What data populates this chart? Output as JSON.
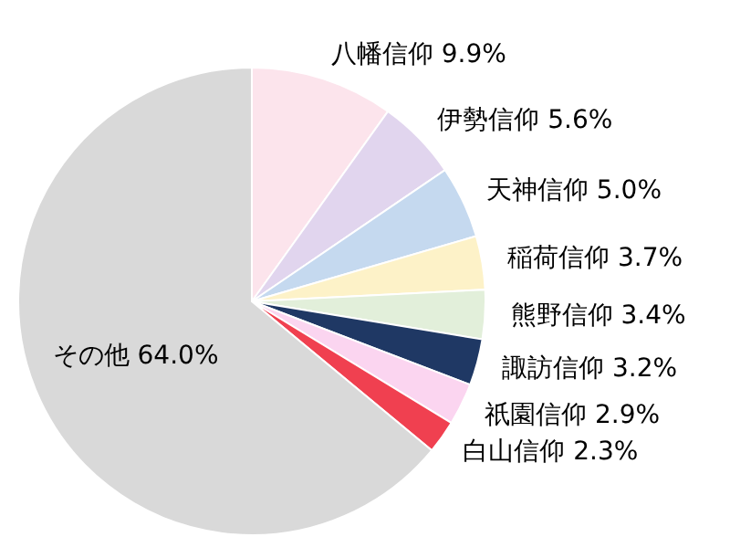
{
  "chart_data": {
    "type": "pie",
    "categories": [
      "八幡信仰",
      "伊勢信仰",
      "天神信仰",
      "稲荷信仰",
      "熊野信仰",
      "諏訪信仰",
      "祇園信仰",
      "白山信仰",
      "その他"
    ],
    "values": [
      9.9,
      5.6,
      5.0,
      3.7,
      3.4,
      3.2,
      2.9,
      2.3,
      64.0
    ],
    "colors": [
      "#fce4ec",
      "#e1d5ee",
      "#c5d9ef",
      "#fdf2c8",
      "#e2efda",
      "#1f3864",
      "#fbd5f0",
      "#f04050",
      "#d9d9d9"
    ],
    "value_labels": [
      "9.9%",
      "5.6%",
      "5.0%",
      "3.7%",
      "3.4%",
      "3.2%",
      "2.9%",
      "2.3%",
      "64.0%"
    ]
  }
}
